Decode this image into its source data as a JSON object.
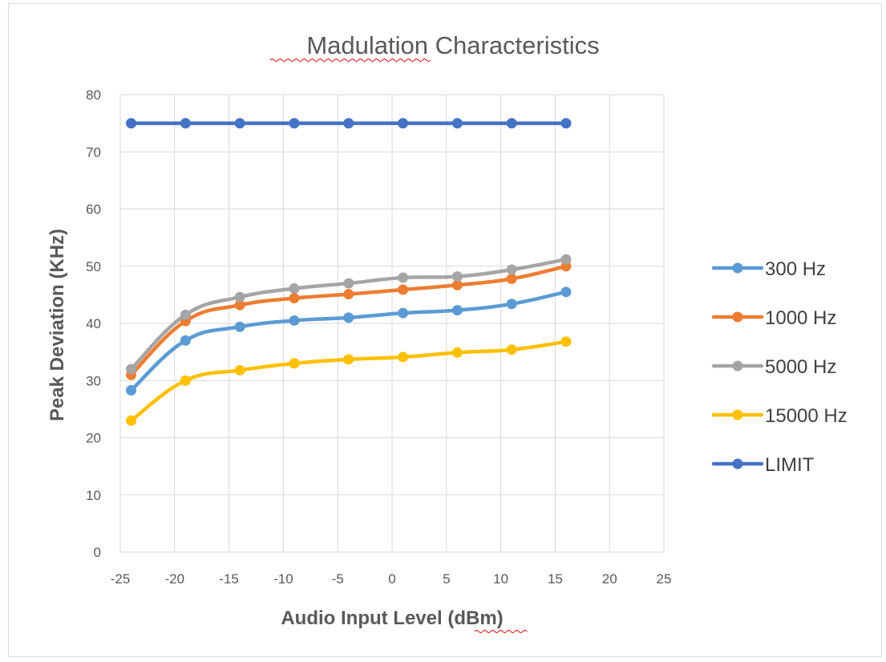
{
  "chart_data": {
    "type": "line",
    "title": "Madulation Characteristics",
    "xlabel": "Audio Input Level (dBm)",
    "ylabel": "Peak Deviation (KHz)",
    "xlim": [
      -25,
      25
    ],
    "ylim": [
      0,
      80
    ],
    "x_ticks": [
      "-25",
      "-20",
      "-15",
      "-10",
      "-5",
      "0",
      "5",
      "10",
      "15",
      "20",
      "25"
    ],
    "y_ticks": [
      "0",
      "10",
      "20",
      "30",
      "40",
      "50",
      "60",
      "70",
      "80"
    ],
    "grid": true,
    "legend_position": "right",
    "x": [
      -24,
      -19,
      -14,
      -9,
      -4,
      1,
      6,
      11,
      16
    ],
    "series": [
      {
        "name": "300 Hz",
        "color": "#5b9bd5",
        "values": [
          28.3,
          37.0,
          39.4,
          40.5,
          41.0,
          41.8,
          42.3,
          43.4,
          45.5
        ]
      },
      {
        "name": "1000 Hz",
        "color": "#ed7d31",
        "values": [
          31.0,
          40.4,
          43.2,
          44.4,
          45.1,
          45.9,
          46.7,
          47.8,
          50.0
        ]
      },
      {
        "name": "5000 Hz",
        "color": "#a5a5a5",
        "values": [
          32.0,
          41.5,
          44.6,
          46.1,
          47.0,
          48.0,
          48.2,
          49.4,
          51.2
        ]
      },
      {
        "name": "15000 Hz",
        "color": "#ffc000",
        "values": [
          23.0,
          30.0,
          31.8,
          33.0,
          33.7,
          34.1,
          34.9,
          35.4,
          36.8
        ]
      },
      {
        "name": "LIMIT",
        "color": "#4472c4",
        "values": [
          75,
          75,
          75,
          75,
          75,
          75,
          75,
          75,
          75
        ]
      }
    ]
  }
}
